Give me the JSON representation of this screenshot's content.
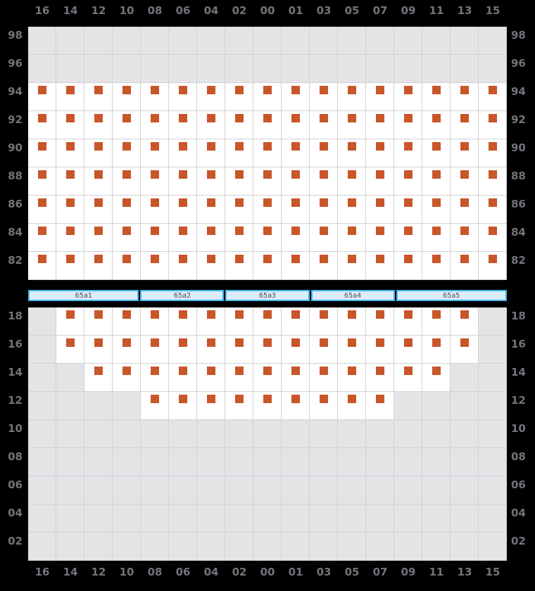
{
  "colors": {
    "background": "#000000",
    "label": "#73737c",
    "grid_line": "#d2d2d6",
    "cell_empty": "#e4e4e7",
    "cell_filled": "#ffffff",
    "container_marker": "#c85629",
    "hatch_border": "#41b4e8",
    "hatch_fill": "#dcedfa",
    "hatch_label": "#4b4b4b"
  },
  "columns": [
    "16",
    "14",
    "12",
    "10",
    "08",
    "06",
    "04",
    "02",
    "00",
    "01",
    "03",
    "05",
    "07",
    "09",
    "11",
    "13",
    "15"
  ],
  "deck": {
    "tiers": [
      {
        "label": "98",
        "occupied": []
      },
      {
        "label": "96",
        "occupied": []
      },
      {
        "label": "94",
        "occupied": [
          "16",
          "14",
          "12",
          "10",
          "08",
          "06",
          "04",
          "02",
          "00",
          "01",
          "03",
          "05",
          "07",
          "09",
          "11",
          "13",
          "15"
        ]
      },
      {
        "label": "92",
        "occupied": [
          "16",
          "14",
          "12",
          "10",
          "08",
          "06",
          "04",
          "02",
          "00",
          "01",
          "03",
          "05",
          "07",
          "09",
          "11",
          "13",
          "15"
        ]
      },
      {
        "label": "90",
        "occupied": [
          "16",
          "14",
          "12",
          "10",
          "08",
          "06",
          "04",
          "02",
          "00",
          "01",
          "03",
          "05",
          "07",
          "09",
          "11",
          "13",
          "15"
        ]
      },
      {
        "label": "88",
        "occupied": [
          "16",
          "14",
          "12",
          "10",
          "08",
          "06",
          "04",
          "02",
          "00",
          "01",
          "03",
          "05",
          "07",
          "09",
          "11",
          "13",
          "15"
        ]
      },
      {
        "label": "86",
        "occupied": [
          "16",
          "14",
          "12",
          "10",
          "08",
          "06",
          "04",
          "02",
          "00",
          "01",
          "03",
          "05",
          "07",
          "09",
          "11",
          "13",
          "15"
        ]
      },
      {
        "label": "84",
        "occupied": [
          "16",
          "14",
          "12",
          "10",
          "08",
          "06",
          "04",
          "02",
          "00",
          "01",
          "03",
          "05",
          "07",
          "09",
          "11",
          "13",
          "15"
        ]
      },
      {
        "label": "82",
        "occupied": [
          "16",
          "14",
          "12",
          "10",
          "08",
          "06",
          "04",
          "02",
          "00",
          "01",
          "03",
          "05",
          "07",
          "09",
          "11",
          "13",
          "15"
        ]
      }
    ]
  },
  "hatch_covers": [
    {
      "label": "65a1",
      "columns_spanned": 4
    },
    {
      "label": "65a2",
      "columns_spanned": 3
    },
    {
      "label": "65a3",
      "columns_spanned": 3
    },
    {
      "label": "65a4",
      "columns_spanned": 3
    },
    {
      "label": "65a5",
      "columns_spanned": 4
    }
  ],
  "hold": {
    "tiers": [
      {
        "label": "18",
        "occupied": [
          "14",
          "12",
          "10",
          "08",
          "06",
          "04",
          "02",
          "00",
          "01",
          "03",
          "05",
          "07",
          "09",
          "11",
          "13"
        ]
      },
      {
        "label": "16",
        "occupied": [
          "14",
          "12",
          "10",
          "08",
          "06",
          "04",
          "02",
          "00",
          "01",
          "03",
          "05",
          "07",
          "09",
          "11",
          "13"
        ]
      },
      {
        "label": "14",
        "occupied": [
          "12",
          "10",
          "08",
          "06",
          "04",
          "02",
          "00",
          "01",
          "03",
          "05",
          "07",
          "09",
          "11"
        ]
      },
      {
        "label": "12",
        "occupied": [
          "08",
          "06",
          "04",
          "02",
          "00",
          "01",
          "03",
          "05",
          "07"
        ]
      },
      {
        "label": "10",
        "occupied": []
      },
      {
        "label": "08",
        "occupied": []
      },
      {
        "label": "06",
        "occupied": []
      },
      {
        "label": "04",
        "occupied": []
      },
      {
        "label": "02",
        "occupied": []
      }
    ]
  }
}
